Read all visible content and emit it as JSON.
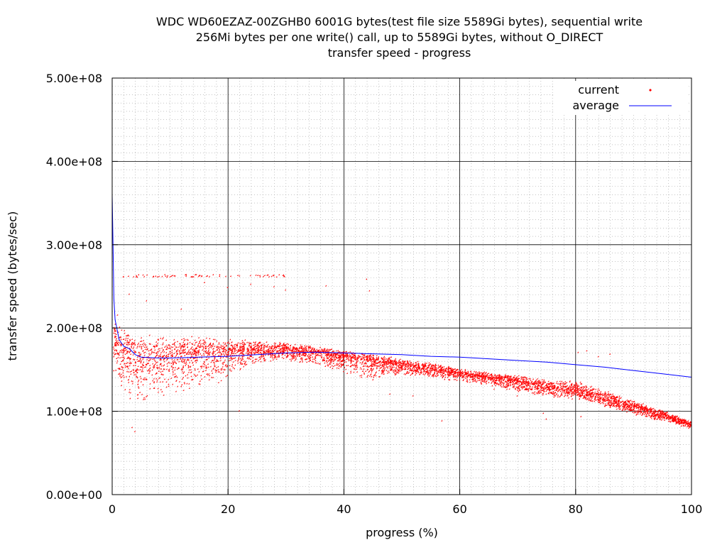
{
  "title_lines": [
    "WDC WD60EZAZ-00ZGHB0 6001G bytes(test file size 5589Gi bytes), sequential write",
    "256Mi bytes per one write() call, up to 5589Gi bytes, without O_DIRECT",
    "transfer speed - progress"
  ],
  "chart_data": {
    "type": "scatter",
    "title": "WDC WD60EZAZ-00ZGHB0 6001G bytes(test file size 5589Gi bytes), sequential write / 256Mi bytes per one write() call, up to 5589Gi bytes, without O_DIRECT / transfer speed - progress",
    "xlabel": "progress (%)",
    "ylabel": "transfer speed (bytes/sec)",
    "xlim": [
      0,
      100
    ],
    "ylim": [
      0,
      500000000
    ],
    "x_ticks": [
      0,
      20,
      40,
      60,
      80,
      100
    ],
    "x_tick_labels": [
      "0",
      "20",
      "40",
      "60",
      "80",
      "100"
    ],
    "y_ticks": [
      0,
      100000000,
      200000000,
      300000000,
      400000000,
      500000000
    ],
    "y_tick_labels": [
      "0.00e+00",
      "1.00e+08",
      "2.00e+08",
      "3.00e+08",
      "4.00e+08",
      "5.00e+08"
    ],
    "grid": true,
    "legend_position": "top-right",
    "series": [
      {
        "name": "current",
        "style": "points",
        "color": "#ff0000",
        "envelope": {
          "x": [
            0.5,
            2,
            5,
            10,
            15,
            20,
            25,
            30,
            35,
            40,
            45,
            50,
            55,
            60,
            65,
            70,
            75,
            80,
            85,
            90,
            95,
            100
          ],
          "center": [
            185000000,
            170000000,
            162000000,
            165000000,
            168000000,
            170000000,
            172000000,
            172000000,
            170000000,
            165000000,
            160000000,
            155000000,
            150000000,
            145000000,
            140000000,
            135000000,
            128000000,
            125000000,
            115000000,
            105000000,
            95000000,
            83000000
          ],
          "spread_low": [
            40000000,
            55000000,
            60000000,
            50000000,
            45000000,
            35000000,
            15000000,
            12000000,
            15000000,
            20000000,
            25000000,
            12000000,
            10000000,
            10000000,
            10000000,
            12000000,
            12000000,
            12000000,
            10000000,
            10000000,
            8000000,
            5000000
          ],
          "spread_high": [
            25000000,
            30000000,
            30000000,
            25000000,
            22000000,
            18000000,
            12000000,
            10000000,
            8000000,
            8000000,
            8000000,
            8000000,
            8000000,
            6000000,
            6000000,
            8000000,
            10000000,
            12000000,
            10000000,
            8000000,
            6000000,
            4000000
          ]
        },
        "outlier_band": {
          "x_range": [
            1,
            30
          ],
          "value": 262000000
        },
        "outliers": [
          {
            "x": 1,
            "y": 215000000
          },
          {
            "x": 3,
            "y": 240000000
          },
          {
            "x": 6,
            "y": 232000000
          },
          {
            "x": 12,
            "y": 222000000
          },
          {
            "x": 16,
            "y": 254000000
          },
          {
            "x": 20,
            "y": 248000000
          },
          {
            "x": 24,
            "y": 252000000
          },
          {
            "x": 28,
            "y": 249000000
          },
          {
            "x": 30,
            "y": 245000000
          },
          {
            "x": 37,
            "y": 250000000
          },
          {
            "x": 44,
            "y": 258000000
          },
          {
            "x": 44.5,
            "y": 244000000
          },
          {
            "x": 3.5,
            "y": 80000000
          },
          {
            "x": 4,
            "y": 75000000
          },
          {
            "x": 22,
            "y": 100000000
          },
          {
            "x": 57,
            "y": 88000000
          },
          {
            "x": 74.5,
            "y": 97000000
          },
          {
            "x": 75,
            "y": 90000000
          },
          {
            "x": 81,
            "y": 93000000
          },
          {
            "x": 80.5,
            "y": 170000000
          },
          {
            "x": 82,
            "y": 172000000
          },
          {
            "x": 84,
            "y": 165000000
          },
          {
            "x": 86,
            "y": 168000000
          },
          {
            "x": 70,
            "y": 118000000
          },
          {
            "x": 66,
            "y": 126000000
          },
          {
            "x": 48,
            "y": 120000000
          },
          {
            "x": 52,
            "y": 118000000
          }
        ]
      },
      {
        "name": "average",
        "style": "line",
        "color": "#0000ff",
        "x": [
          0,
          0.15,
          0.3,
          0.5,
          0.8,
          1.2,
          2,
          3,
          4,
          5,
          8,
          10,
          15,
          20,
          25,
          30,
          35,
          40,
          45,
          50,
          55,
          60,
          65,
          70,
          75,
          80,
          85,
          90,
          95,
          100
        ],
        "y": [
          360000000,
          300000000,
          235000000,
          210000000,
          200000000,
          186000000,
          178000000,
          175000000,
          168000000,
          165000000,
          164000000,
          164000000,
          165000000,
          166000000,
          168000000,
          170000000,
          171000000,
          170000000,
          169000000,
          168000000,
          166000000,
          165000000,
          163000000,
          161000000,
          159000000,
          156000000,
          153000000,
          149000000,
          145000000,
          141000000
        ]
      }
    ]
  }
}
